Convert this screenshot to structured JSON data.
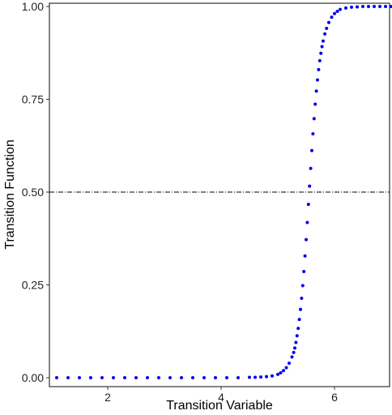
{
  "chart_data": {
    "type": "scatter",
    "title": "",
    "xlabel": "Transition Variable",
    "ylabel": "Transition Function",
    "xlim": [
      1.0,
      7.0
    ],
    "ylim": [
      0.0,
      1.0
    ],
    "x_ticks": [
      2,
      4,
      6
    ],
    "y_ticks": [
      0.0,
      0.25,
      0.5,
      0.75,
      1.0
    ],
    "x_tick_labels": [
      "2",
      "4",
      "6"
    ],
    "y_tick_labels": [
      "0.00",
      "0.25",
      "0.50",
      "0.75",
      "1.00"
    ],
    "grid": false,
    "reference_line": {
      "y": 0.5,
      "style": "dash-dot",
      "color": "#000000"
    },
    "point_color": "#0000ee",
    "series": [
      {
        "x": [
          1.1,
          1.3,
          1.5,
          1.7,
          1.9,
          2.1,
          2.3,
          2.5,
          2.7,
          2.9,
          3.1,
          3.3,
          3.5,
          3.7,
          3.9,
          4.1,
          4.3,
          4.5,
          4.6,
          4.7,
          4.8,
          4.9,
          5.0,
          5.05,
          5.1,
          5.15,
          5.2,
          5.25,
          5.28,
          5.3,
          5.32,
          5.34,
          5.36,
          5.38,
          5.4,
          5.42,
          5.44,
          5.46,
          5.48,
          5.5,
          5.52,
          5.54,
          5.56,
          5.58,
          5.6,
          5.62,
          5.64,
          5.66,
          5.68,
          5.7,
          5.72,
          5.74,
          5.76,
          5.78,
          5.8,
          5.83,
          5.86,
          5.9,
          5.95,
          6.0,
          6.05,
          6.1,
          6.2,
          6.3,
          6.4,
          6.5,
          6.6,
          6.7,
          6.8,
          6.9,
          7.0
        ],
        "y": [
          0.0,
          0.0,
          0.0,
          0.0,
          0.0,
          0.0,
          0.0,
          0.0,
          0.0,
          0.0,
          0.0,
          0.0,
          0.0,
          0.0,
          0.0,
          0.0,
          0.0,
          0.001,
          0.001,
          0.002,
          0.003,
          0.005,
          0.009,
          0.013,
          0.019,
          0.027,
          0.039,
          0.056,
          0.068,
          0.08,
          0.095,
          0.113,
          0.133,
          0.157,
          0.184,
          0.214,
          0.248,
          0.286,
          0.328,
          0.372,
          0.418,
          0.467,
          0.516,
          0.564,
          0.612,
          0.657,
          0.698,
          0.737,
          0.772,
          0.802,
          0.83,
          0.854,
          0.874,
          0.892,
          0.907,
          0.926,
          0.941,
          0.957,
          0.971,
          0.981,
          0.987,
          0.992,
          0.996,
          0.998,
          0.999,
          1.0,
          1.0,
          1.0,
          1.0,
          1.0,
          1.0
        ]
      }
    ]
  }
}
